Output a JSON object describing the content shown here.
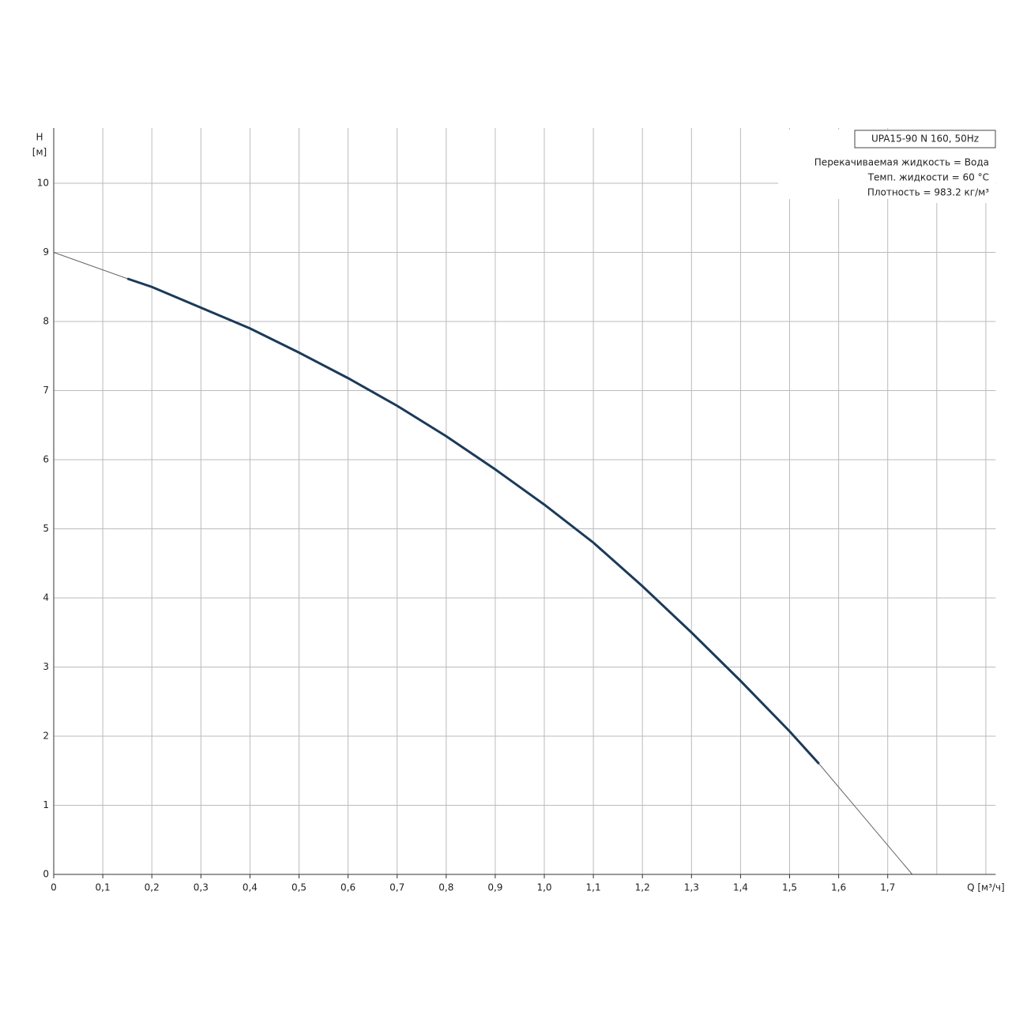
{
  "chart_data": {
    "type": "line",
    "title": "UPA15-90 N 160, 50Hz",
    "annotations": [
      "Перекачиваемая жидкость = Вода",
      "Темп. жидкости = 60 °C",
      "Плотность = 983.2 кг/м³"
    ],
    "y_label": [
      "H",
      "[м]"
    ],
    "x_label": "Q [м³/ч]",
    "xlim": [
      0,
      1.92
    ],
    "ylim": [
      0,
      10.8
    ],
    "xticks": [
      0,
      {
        "value": 0.1,
        "label": "0,1"
      },
      {
        "value": 0.2,
        "label": "0,2"
      },
      {
        "value": 0.3,
        "label": "0,3"
      },
      {
        "value": 0.4,
        "label": "0,4"
      },
      {
        "value": 0.5,
        "label": "0,5"
      },
      {
        "value": 0.6,
        "label": "0,6"
      },
      {
        "value": 0.7,
        "label": "0,7"
      },
      {
        "value": 0.8,
        "label": "0,8"
      },
      {
        "value": 0.9,
        "label": "0,9"
      },
      {
        "value": 1.0,
        "label": "1,0"
      },
      {
        "value": 1.1,
        "label": "1,1"
      },
      {
        "value": 1.2,
        "label": "1,2"
      },
      {
        "value": 1.3,
        "label": "1,3"
      },
      {
        "value": 1.4,
        "label": "1,4"
      },
      {
        "value": 1.5,
        "label": "1,5"
      },
      {
        "value": 1.6,
        "label": "1,6"
      },
      {
        "value": 1.7,
        "label": "1,7"
      }
    ],
    "yticks": [
      0,
      1,
      2,
      3,
      4,
      5,
      6,
      7,
      8,
      9,
      10
    ],
    "grid": true,
    "series": [
      {
        "color": "#1b3a5a",
        "width": 3,
        "x": [
          0.15,
          0.2,
          0.3,
          0.4,
          0.5,
          0.6,
          0.7,
          0.8,
          0.9,
          1.0,
          1.1,
          1.2,
          1.3,
          1.4,
          1.5,
          1.56
        ],
        "values": [
          8.62,
          8.5,
          8.2,
          7.9,
          7.55,
          7.18,
          6.78,
          6.34,
          5.86,
          5.35,
          4.8,
          4.17,
          3.5,
          2.8,
          2.07,
          1.6
        ]
      },
      {
        "color": "#666666",
        "width": 1,
        "x": [
          0,
          0.15,
          null,
          1.56,
          1.75
        ],
        "values": [
          9.0,
          8.62,
          null,
          1.6,
          0
        ]
      }
    ]
  }
}
